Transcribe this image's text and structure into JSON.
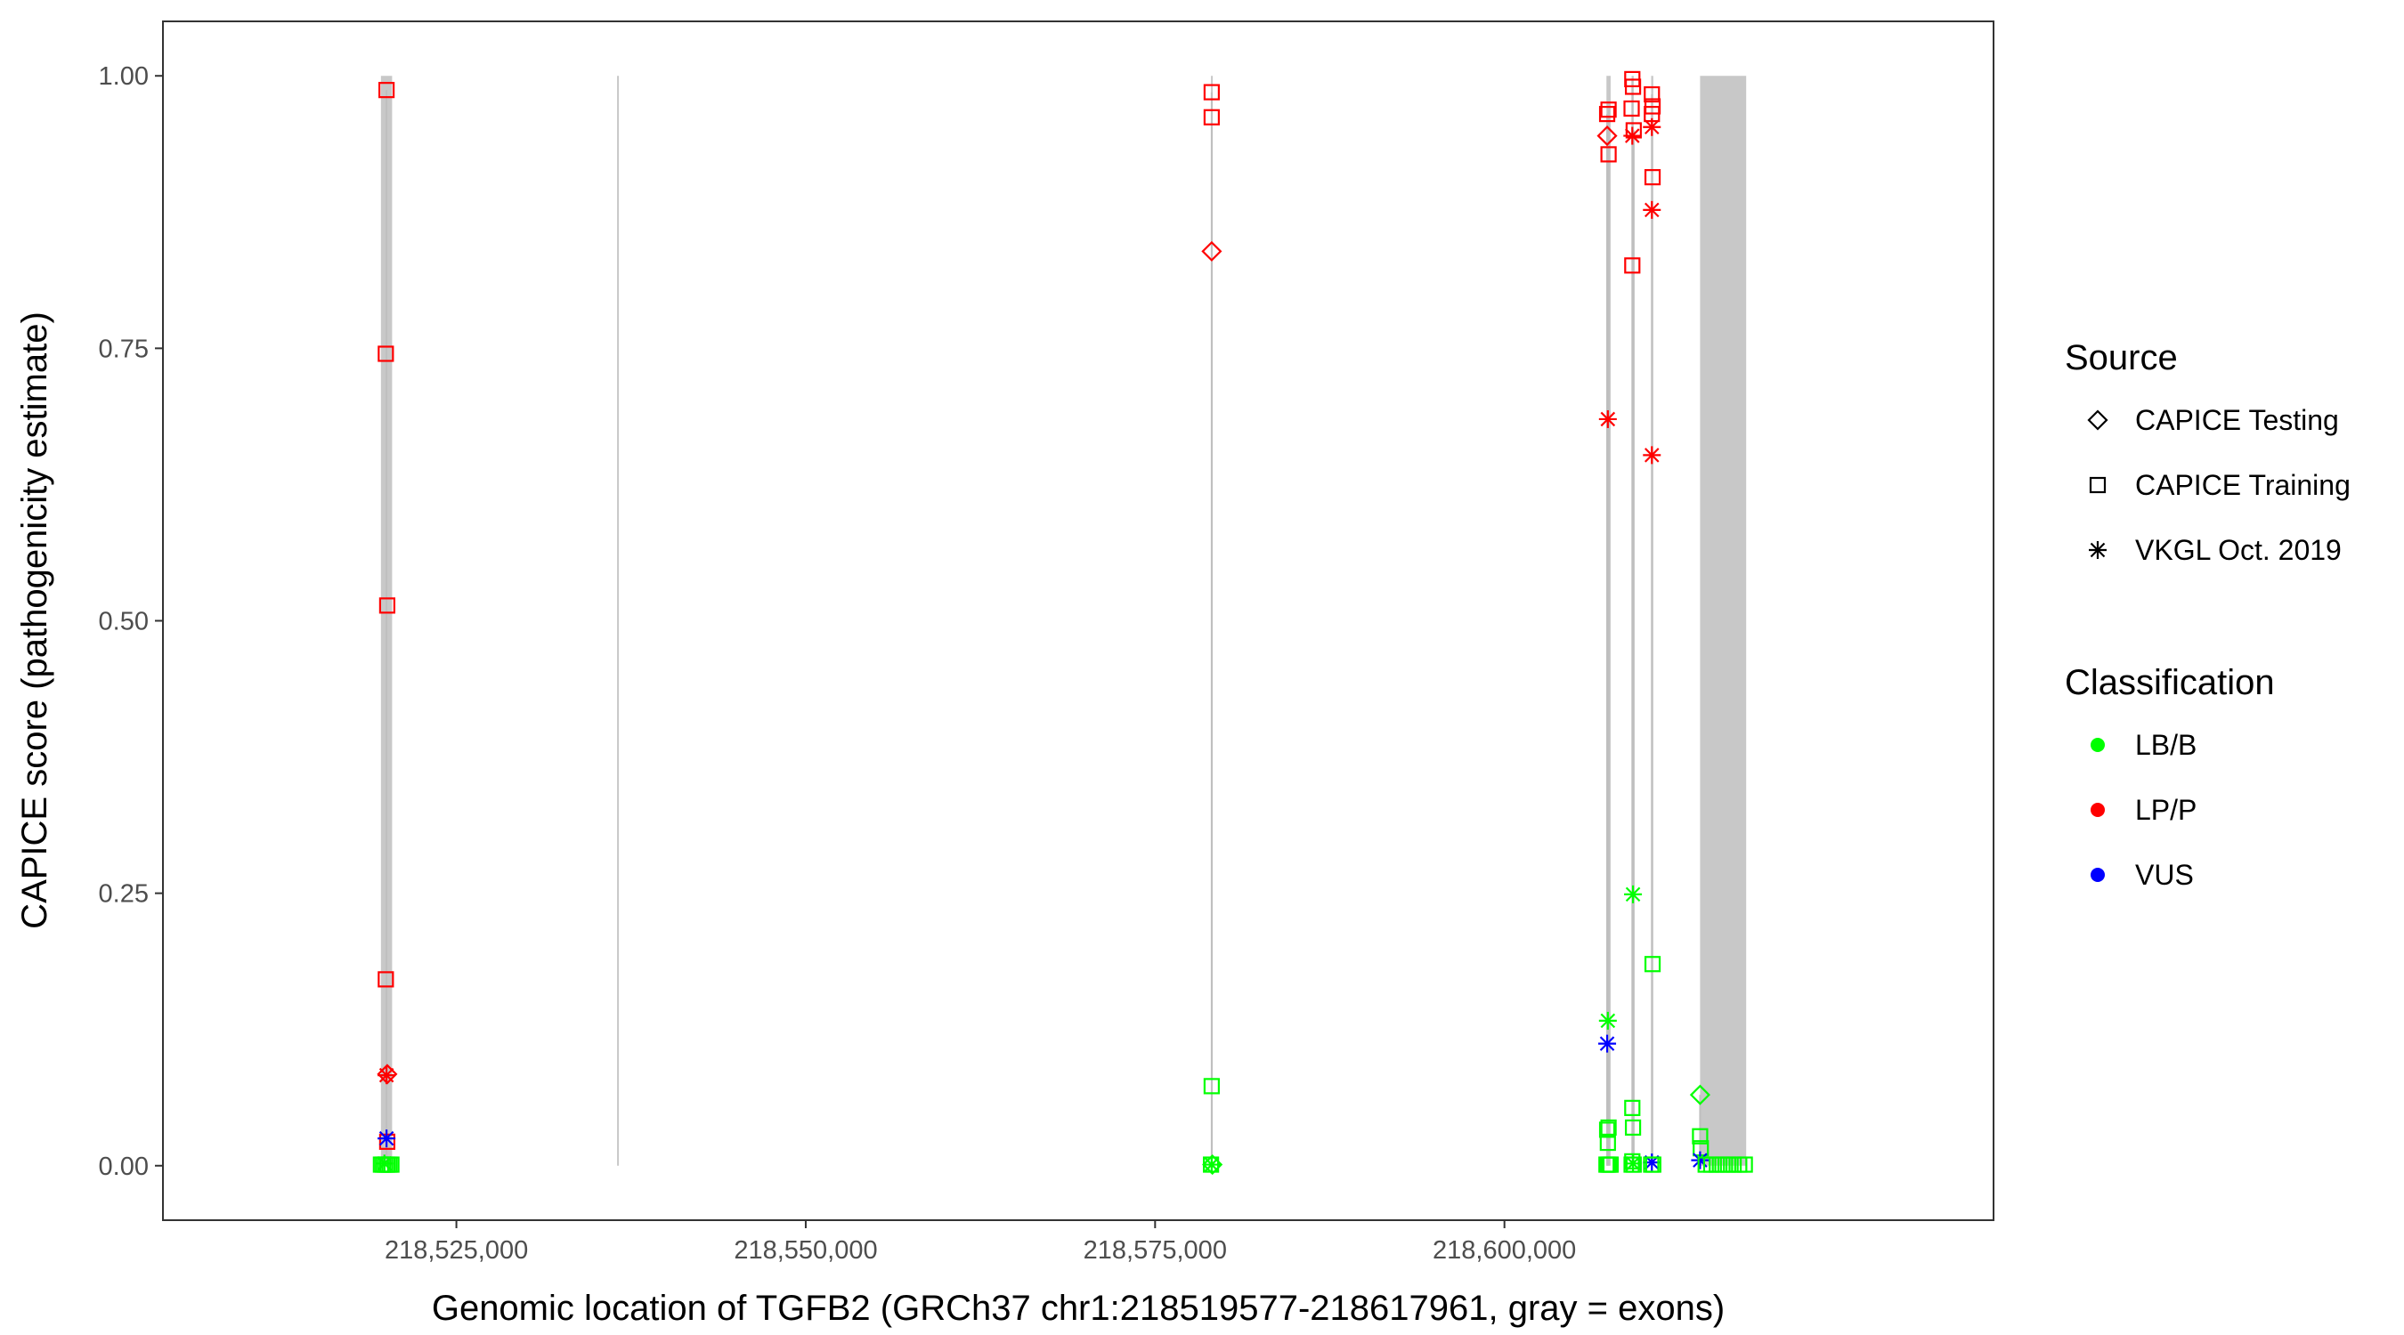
{
  "chart_data": {
    "type": "scatter",
    "xlabel": "Genomic location of TGFB2 (GRCh37 chr1:218519577-218617961, gray = exons)",
    "ylabel": "CAPICE score (pathogenicity estimate)",
    "xlim": [
      218504000,
      218635000
    ],
    "ylim": [
      -0.05,
      1.05
    ],
    "x_ticks": [
      218525000,
      218550000,
      218575000,
      218600000
    ],
    "x_tick_labels": [
      "218,525,000",
      "218,550,000",
      "218,575,000",
      "218,600,000"
    ],
    "y_ticks": [
      0.0,
      0.25,
      0.5,
      0.75,
      1.0
    ],
    "y_tick_labels": [
      "0.00",
      "0.25",
      "0.50",
      "0.75",
      "1.00"
    ],
    "grid": false,
    "exons": [
      [
        218519600,
        218520400
      ],
      [
        218536500,
        218536560
      ],
      [
        218579000,
        218579120
      ],
      [
        218607300,
        218607600
      ],
      [
        218609100,
        218609250
      ],
      [
        218610500,
        218610650
      ],
      [
        218614000,
        218617300
      ]
    ],
    "legend": {
      "placement": "right",
      "source_title": "Source",
      "source_entries": [
        {
          "label": "CAPICE Testing",
          "shape": "diamond"
        },
        {
          "label": "CAPICE Training",
          "shape": "square"
        },
        {
          "label": "VKGL Oct. 2019",
          "shape": "asterisk"
        }
      ],
      "class_title": "Classification",
      "class_entries": [
        {
          "label": "LB/B",
          "color": "#00ff00"
        },
        {
          "label": "LP/P",
          "color": "#ff0000"
        },
        {
          "label": "VUS",
          "color": "#0000ff"
        }
      ]
    },
    "points": [
      {
        "x": 218520000,
        "y": 0.987,
        "source": "square",
        "cls": "LP/P"
      },
      {
        "x": 218519950,
        "y": 0.745,
        "source": "square",
        "cls": "LP/P"
      },
      {
        "x": 218520050,
        "y": 0.514,
        "source": "square",
        "cls": "LP/P"
      },
      {
        "x": 218519950,
        "y": 0.171,
        "source": "square",
        "cls": "LP/P"
      },
      {
        "x": 218520050,
        "y": 0.084,
        "source": "diamond",
        "cls": "LP/P"
      },
      {
        "x": 218520000,
        "y": 0.083,
        "source": "asterisk",
        "cls": "LP/P"
      },
      {
        "x": 218520050,
        "y": 0.022,
        "source": "square",
        "cls": "LP/P"
      },
      {
        "x": 218520000,
        "y": 0.025,
        "source": "asterisk",
        "cls": "VUS"
      },
      {
        "x": 218519600,
        "y": 0.001,
        "source": "square",
        "cls": "LB/B"
      },
      {
        "x": 218519750,
        "y": 0.001,
        "source": "square",
        "cls": "LB/B"
      },
      {
        "x": 218519900,
        "y": 0.001,
        "source": "square",
        "cls": "LB/B"
      },
      {
        "x": 218520050,
        "y": 0.001,
        "source": "square",
        "cls": "LB/B"
      },
      {
        "x": 218520200,
        "y": 0.001,
        "source": "square",
        "cls": "LB/B"
      },
      {
        "x": 218520350,
        "y": 0.001,
        "source": "square",
        "cls": "LB/B"
      },
      {
        "x": 218519850,
        "y": 0.002,
        "source": "asterisk",
        "cls": "LB/B"
      },
      {
        "x": 218579050,
        "y": 0.985,
        "source": "square",
        "cls": "LP/P"
      },
      {
        "x": 218579050,
        "y": 0.962,
        "source": "square",
        "cls": "LP/P"
      },
      {
        "x": 218579050,
        "y": 0.839,
        "source": "diamond",
        "cls": "LP/P"
      },
      {
        "x": 218579050,
        "y": 0.073,
        "source": "square",
        "cls": "LB/B"
      },
      {
        "x": 218579000,
        "y": 0.001,
        "source": "square",
        "cls": "LB/B"
      },
      {
        "x": 218579100,
        "y": 0.001,
        "source": "diamond",
        "cls": "LB/B"
      },
      {
        "x": 218579050,
        "y": 0.001,
        "source": "asterisk",
        "cls": "LB/B"
      },
      {
        "x": 218607350,
        "y": 0.965,
        "source": "square",
        "cls": "LP/P"
      },
      {
        "x": 218607450,
        "y": 0.969,
        "source": "square",
        "cls": "LP/P"
      },
      {
        "x": 218607350,
        "y": 0.945,
        "source": "diamond",
        "cls": "LP/P"
      },
      {
        "x": 218607450,
        "y": 0.928,
        "source": "square",
        "cls": "LP/P"
      },
      {
        "x": 218607400,
        "y": 0.685,
        "source": "asterisk",
        "cls": "LP/P"
      },
      {
        "x": 218607400,
        "y": 0.133,
        "source": "asterisk",
        "cls": "LB/B"
      },
      {
        "x": 218607350,
        "y": 0.112,
        "source": "asterisk",
        "cls": "VUS"
      },
      {
        "x": 218607350,
        "y": 0.033,
        "source": "square",
        "cls": "LB/B"
      },
      {
        "x": 218607450,
        "y": 0.035,
        "source": "square",
        "cls": "LB/B"
      },
      {
        "x": 218607400,
        "y": 0.021,
        "source": "square",
        "cls": "LB/B"
      },
      {
        "x": 218607300,
        "y": 0.001,
        "source": "square",
        "cls": "LB/B"
      },
      {
        "x": 218607400,
        "y": 0.001,
        "source": "square",
        "cls": "LB/B"
      },
      {
        "x": 218607500,
        "y": 0.001,
        "source": "square",
        "cls": "LB/B"
      },
      {
        "x": 218607600,
        "y": 0.001,
        "source": "square",
        "cls": "LB/B"
      },
      {
        "x": 218609150,
        "y": 0.997,
        "source": "square",
        "cls": "LP/P"
      },
      {
        "x": 218609200,
        "y": 0.99,
        "source": "square",
        "cls": "LP/P"
      },
      {
        "x": 218609100,
        "y": 0.97,
        "source": "square",
        "cls": "LP/P"
      },
      {
        "x": 218609150,
        "y": 0.945,
        "source": "asterisk",
        "cls": "LP/P"
      },
      {
        "x": 218609250,
        "y": 0.95,
        "source": "square",
        "cls": "LP/P"
      },
      {
        "x": 218609150,
        "y": 0.826,
        "source": "square",
        "cls": "LP/P"
      },
      {
        "x": 218609200,
        "y": 0.249,
        "source": "asterisk",
        "cls": "LB/B"
      },
      {
        "x": 218609150,
        "y": 0.053,
        "source": "square",
        "cls": "LB/B"
      },
      {
        "x": 218609200,
        "y": 0.035,
        "source": "square",
        "cls": "LB/B"
      },
      {
        "x": 218609150,
        "y": 0.004,
        "source": "square",
        "cls": "LB/B"
      },
      {
        "x": 218609100,
        "y": 0.001,
        "source": "square",
        "cls": "LB/B"
      },
      {
        "x": 218609250,
        "y": 0.001,
        "source": "square",
        "cls": "LB/B"
      },
      {
        "x": 218609200,
        "y": 0.002,
        "source": "asterisk",
        "cls": "LB/B"
      },
      {
        "x": 218610550,
        "y": 0.983,
        "source": "square",
        "cls": "LP/P"
      },
      {
        "x": 218610600,
        "y": 0.972,
        "source": "square",
        "cls": "LP/P"
      },
      {
        "x": 218610550,
        "y": 0.965,
        "source": "square",
        "cls": "LP/P"
      },
      {
        "x": 218610550,
        "y": 0.953,
        "source": "asterisk",
        "cls": "LP/P"
      },
      {
        "x": 218610600,
        "y": 0.907,
        "source": "square",
        "cls": "LP/P"
      },
      {
        "x": 218610550,
        "y": 0.877,
        "source": "asterisk",
        "cls": "LP/P"
      },
      {
        "x": 218610550,
        "y": 0.652,
        "source": "asterisk",
        "cls": "LP/P"
      },
      {
        "x": 218610600,
        "y": 0.185,
        "source": "square",
        "cls": "LB/B"
      },
      {
        "x": 218610550,
        "y": 0.003,
        "source": "asterisk",
        "cls": "VUS"
      },
      {
        "x": 218610500,
        "y": 0.001,
        "source": "square",
        "cls": "LB/B"
      },
      {
        "x": 218610650,
        "y": 0.001,
        "source": "square",
        "cls": "LB/B"
      },
      {
        "x": 218614000,
        "y": 0.065,
        "source": "diamond",
        "cls": "LB/B"
      },
      {
        "x": 218614000,
        "y": 0.027,
        "source": "square",
        "cls": "LB/B"
      },
      {
        "x": 218614050,
        "y": 0.016,
        "source": "square",
        "cls": "LB/B"
      },
      {
        "x": 218614000,
        "y": 0.005,
        "source": "asterisk",
        "cls": "VUS"
      },
      {
        "x": 218614400,
        "y": 0.001,
        "source": "square",
        "cls": "LB/B"
      },
      {
        "x": 218614800,
        "y": 0.001,
        "source": "square",
        "cls": "LB/B"
      },
      {
        "x": 218615200,
        "y": 0.001,
        "source": "square",
        "cls": "LB/B"
      },
      {
        "x": 218615600,
        "y": 0.001,
        "source": "square",
        "cls": "LB/B"
      },
      {
        "x": 218616000,
        "y": 0.001,
        "source": "square",
        "cls": "LB/B"
      },
      {
        "x": 218616400,
        "y": 0.001,
        "source": "square",
        "cls": "LB/B"
      },
      {
        "x": 218616800,
        "y": 0.001,
        "source": "square",
        "cls": "LB/B"
      },
      {
        "x": 218617200,
        "y": 0.001,
        "source": "square",
        "cls": "LB/B"
      }
    ]
  }
}
